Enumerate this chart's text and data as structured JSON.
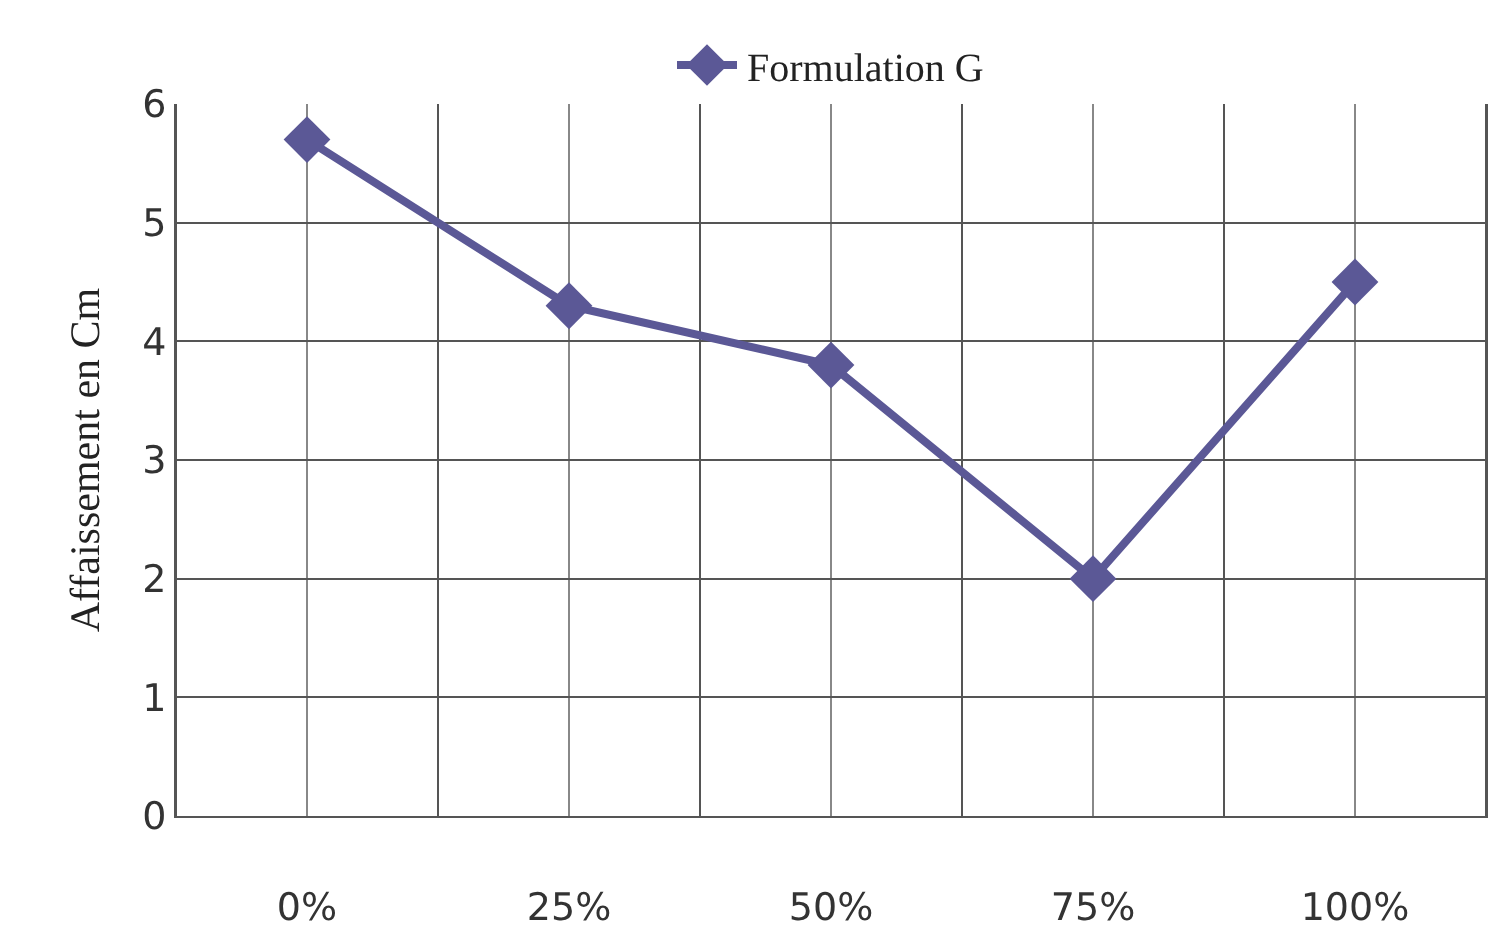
{
  "chart_data": {
    "type": "line",
    "ylabel": "Affaissement en Cm",
    "categories": [
      "0%",
      "25%",
      "50%",
      "75%",
      "100%"
    ],
    "series": [
      {
        "name": "Formulation G",
        "color": "#5b5896",
        "values": [
          5.7,
          4.3,
          3.8,
          2.0,
          4.5
        ]
      }
    ],
    "ylim": [
      0,
      6
    ],
    "yticks": [
      0,
      1,
      2,
      3,
      4,
      5,
      6
    ],
    "grid": true,
    "legend": "top",
    "marker": "diamond",
    "line_style": "solid"
  }
}
